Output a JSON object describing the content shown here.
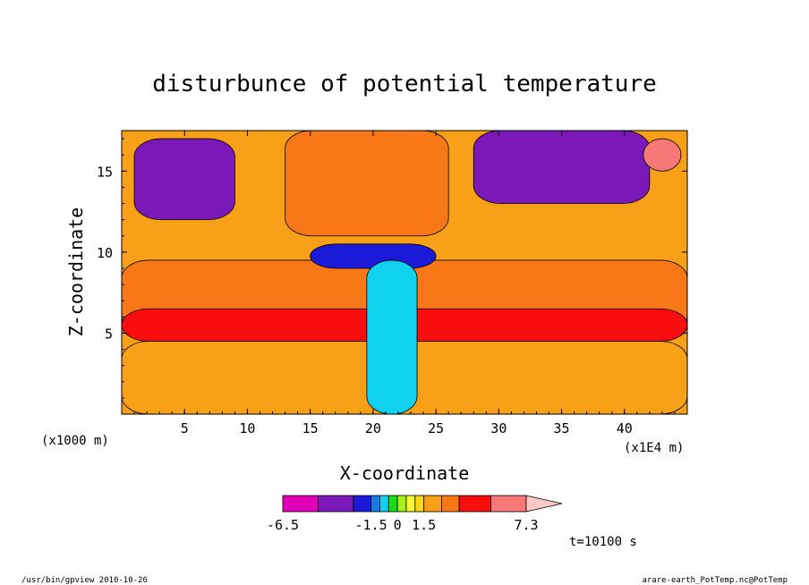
{
  "chart_data": {
    "type": "heatmap",
    "title": "disturbunce of potential temperature",
    "xlabel": "X-coordinate",
    "ylabel": "Z-coordinate",
    "x_units": "(x1E4 m)",
    "y_units": "(x1000 m)",
    "xlim": [
      0,
      45
    ],
    "ylim": [
      0,
      17.5
    ],
    "xticks": [
      5,
      10,
      15,
      20,
      25,
      30,
      35,
      40
    ],
    "yticks": [
      5,
      10,
      15
    ],
    "colorbar": {
      "levels": [
        -6.5,
        -4.5,
        -2.5,
        -1.5,
        -1.0,
        -0.5,
        0.0,
        0.5,
        1.0,
        1.5,
        2.5,
        3.5,
        5.3,
        7.3
      ],
      "tick_labels": [
        "-6.5",
        "-1.5",
        "0",
        "1.5",
        "7.3"
      ],
      "tick_values": [
        -6.5,
        -1.5,
        0,
        1.5,
        7.3
      ],
      "colors": [
        "#e000b8",
        "#7a18b8",
        "#1a1ad8",
        "#1a7ae6",
        "#10d2ee",
        "#18de18",
        "#a8f018",
        "#f8f830",
        "#f8d818",
        "#f8a018",
        "#f87818",
        "#f80e0e",
        "#f87878",
        "#ffc8c8"
      ],
      "extend": "max"
    },
    "regions": [
      {
        "desc": "uniform positive layer",
        "x": [
          0,
          45
        ],
        "z": [
          5.0,
          9.5
        ],
        "value": 2.8
      },
      {
        "desc": "lower band maximum",
        "x": [
          0,
          45
        ],
        "z": [
          4.5,
          6.5
        ],
        "value": 3.8
      },
      {
        "desc": "near-surface layer",
        "x": [
          0,
          45
        ],
        "z": [
          0,
          4.5
        ],
        "value": 2.2
      },
      {
        "desc": "upper negative lobe left",
        "x": [
          1,
          9
        ],
        "z": [
          12.0,
          17.0
        ],
        "value": -3.0
      },
      {
        "desc": "upper negative lobe right",
        "x": [
          28,
          42
        ],
        "z": [
          13.0,
          17.5
        ],
        "value": -3.0
      },
      {
        "desc": "central negative pool",
        "x": [
          15,
          25
        ],
        "z": [
          9.0,
          10.5
        ],
        "value": -2.0
      },
      {
        "desc": "upper positive core",
        "x": [
          13,
          26
        ],
        "z": [
          11.0,
          17.5
        ],
        "value": 2.5
      },
      {
        "desc": "top-right maximum",
        "x": [
          41.5,
          44.5
        ],
        "z": [
          15.0,
          17.0
        ],
        "value": 6.0
      },
      {
        "desc": "convective column",
        "x": [
          19.5,
          23.5
        ],
        "z": [
          0,
          9.5
        ],
        "value": -1.0
      }
    ]
  },
  "time_label": "t=10100 s",
  "footer_left": "/usr/bin/gpview  2010-10-26",
  "footer_right": "arare-earth_PotTemp.nc@PotTemp"
}
